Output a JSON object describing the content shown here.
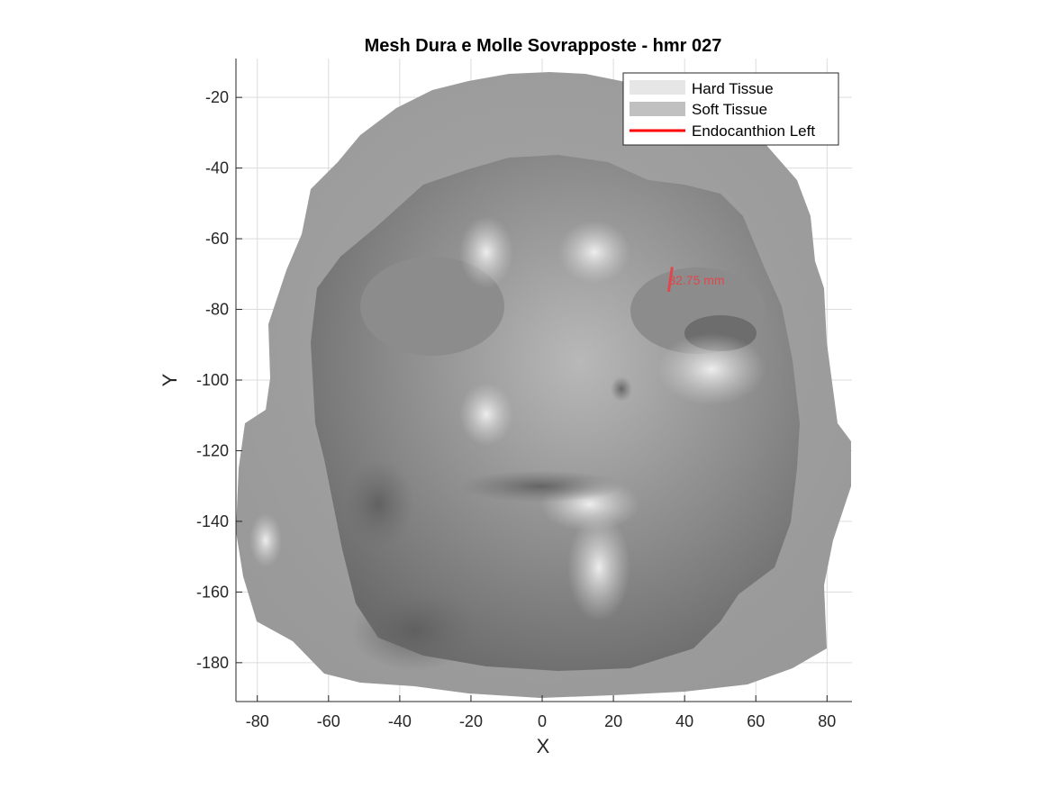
{
  "chart_data": {
    "type": "scatter",
    "title": "Mesh Dura e Molle Sovrapposte - hmr 027",
    "xlabel": "X",
    "ylabel": "Y",
    "xlim": [
      -86,
      87
    ],
    "ylim": [
      -191,
      -9
    ],
    "xticks": [
      -80,
      -60,
      -40,
      -20,
      0,
      20,
      40,
      60,
      80
    ],
    "yticks": [
      -20,
      -40,
      -60,
      -80,
      -100,
      -120,
      -140,
      -160,
      -180
    ],
    "grid": true,
    "legend_position": "top-right",
    "legend": [
      {
        "name": "Hard Tissue",
        "color": "#e6e6e6",
        "kind": "patch"
      },
      {
        "name": "Soft Tissue",
        "color": "#c0c0c0",
        "kind": "patch"
      },
      {
        "name": "Endocanthion Left",
        "color": "#ff0000",
        "kind": "line"
      }
    ],
    "measurement": {
      "label": "32.75 mm",
      "color": "#e0474c",
      "segment": {
        "x": [
          36.5,
          35.5
        ],
        "y": [
          -68,
          -75
        ]
      },
      "label_anchor": {
        "x": 36,
        "y": -72
      }
    }
  }
}
